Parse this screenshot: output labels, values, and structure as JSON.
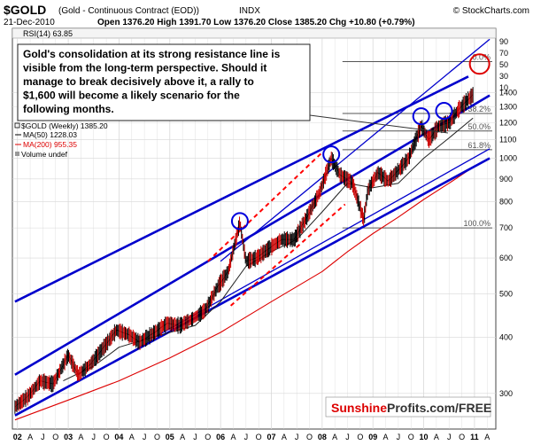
{
  "header": {
    "symbol": "$GOLD",
    "name": "(Gold - Continuous Contract (EOD))",
    "exchange": "INDX",
    "source": "© StockCharts.com",
    "date": "21-Dec-2010",
    "ohlc_line": "Open 1376.20  High 1391.70  Low 1376.20  Close 1385.20  Chg +10.80 (+0.79%)"
  },
  "rsi": {
    "label": "RSI(14) 63.85"
  },
  "annotation": {
    "lines": [
      "Gold's consolidation at its strong resistance line is",
      "visible from the long-term perspective. Should it",
      "manage to break decisively above it, a rally to",
      "$1,600 will become a likely scenario for the",
      "following months."
    ]
  },
  "legend": {
    "price": "$GOLD (Weekly) 1385.20",
    "ma50": "MA(50) 1228.03",
    "ma200": "MA(200) 955.35",
    "volume": "Volume undef"
  },
  "fib_labels": [
    "0.0%",
    "38.2%",
    "50.0%",
    "61.8%",
    "100.0%"
  ],
  "watermark": {
    "brand": "Sunshine",
    "rest": "Profits.com/FREE"
  },
  "colors": {
    "trendline": "#0000cc",
    "ma200": "#dd0000",
    "dashed": "#ff0000",
    "circle_blue": "#0000dd",
    "circle_red": "#dd0000",
    "candle_up": "#000000",
    "candle_down": "#cc0000",
    "grid": "#d8d8d8"
  },
  "chart_data": {
    "type": "line",
    "scale": "log",
    "ylim": [
      250,
      1850
    ],
    "y_ticks": [
      300,
      400,
      500,
      600,
      700,
      800,
      900,
      1000,
      1100,
      1200,
      1300,
      1400
    ],
    "rsi_ticks": [
      10,
      30,
      50,
      70,
      90
    ],
    "x_tick_labels": [
      "J",
      "02",
      "A",
      "J",
      "O",
      "03",
      "A",
      "J",
      "O",
      "04",
      "A",
      "J",
      "O",
      "05",
      "A",
      "J",
      "O",
      "06",
      "A",
      "J",
      "O",
      "07",
      "A",
      "J",
      "O",
      "08",
      "A",
      "J",
      "O",
      "09",
      "A",
      "J",
      "O",
      "10",
      "A",
      "J",
      "O",
      "11",
      "A",
      "J"
    ],
    "x_year_labels": [
      "02",
      "03",
      "04",
      "05",
      "06",
      "07",
      "08",
      "09",
      "10",
      "11"
    ],
    "fibonacci_levels": [
      {
        "label": "0.0%",
        "value": 1640
      },
      {
        "label": "38.2%",
        "value": 1258
      },
      {
        "label": "50.0%",
        "value": 1150
      },
      {
        "label": "61.8%",
        "value": 1045
      },
      {
        "label": "100.0%",
        "value": 700
      }
    ],
    "price_series": {
      "name": "$GOLD (Weekly)",
      "x": [
        2001.95,
        2002.2,
        2002.45,
        2002.7,
        2003.0,
        2003.2,
        2003.45,
        2003.7,
        2003.95,
        2004.2,
        2004.4,
        2004.7,
        2004.95,
        2005.2,
        2005.45,
        2005.7,
        2005.95,
        2006.15,
        2006.38,
        2006.5,
        2006.7,
        2006.95,
        2007.2,
        2007.45,
        2007.7,
        2007.95,
        2008.18,
        2008.35,
        2008.6,
        2008.82,
        2008.9,
        2009.1,
        2009.3,
        2009.5,
        2009.7,
        2009.95,
        2010.1,
        2010.3,
        2010.5,
        2010.7,
        2010.97
      ],
      "y": [
        280,
        295,
        320,
        315,
        365,
        330,
        350,
        380,
        415,
        405,
        390,
        410,
        430,
        425,
        440,
        460,
        520,
        560,
        720,
        590,
        600,
        630,
        660,
        660,
        740,
        840,
        1000,
        920,
        880,
        730,
        850,
        930,
        890,
        940,
        1000,
        1180,
        1100,
        1180,
        1200,
        1290,
        1385
      ]
    },
    "ma50": {
      "name": "MA(50)",
      "x": [
        2002.9,
        2003.5,
        2004.0,
        2004.5,
        2005.0,
        2005.5,
        2006.0,
        2006.5,
        2007.0,
        2007.5,
        2008.0,
        2008.5,
        2009.0,
        2009.5,
        2010.0,
        2010.5,
        2010.97
      ],
      "y": [
        320,
        345,
        380,
        395,
        410,
        425,
        480,
        575,
        620,
        660,
        760,
        880,
        860,
        880,
        1000,
        1110,
        1228
      ]
    },
    "ma200": {
      "name": "MA(200)",
      "x": [
        2001.95,
        2003.0,
        2004.0,
        2005.0,
        2006.0,
        2007.0,
        2008.0,
        2008.5,
        2009.0,
        2009.5,
        2010.0,
        2010.5,
        2010.97
      ],
      "y": [
        262,
        290,
        320,
        360,
        410,
        480,
        560,
        620,
        680,
        740,
        810,
        880,
        955
      ]
    },
    "trendlines": [
      {
        "role": "upper-channel",
        "x": [
          2001.95,
          2010.88
        ],
        "y": [
          480,
          1520
        ]
      },
      {
        "role": "inner-upper",
        "x": [
          2006.0,
          2011.3
        ],
        "y": [
          590,
          1840
        ]
      },
      {
        "role": "lower-support",
        "x": [
          2001.95,
          2011.3
        ],
        "y": [
          268,
          1000
        ]
      },
      {
        "role": "outer-lower",
        "x": [
          2001.95,
          2011.3
        ],
        "y": [
          330,
          1380
        ]
      },
      {
        "role": "inner-lower",
        "x": [
          2004.7,
          2011.3
        ],
        "y": [
          400,
          1050
        ]
      }
    ],
    "dashed_lines": [
      {
        "x": [
          2005.75,
          2008.0
        ],
        "y": [
          590,
          1030
        ]
      },
      {
        "x": [
          2006.2,
          2008.45
        ],
        "y": [
          470,
          790
        ]
      }
    ],
    "highlight_circles": [
      {
        "x": 2006.38,
        "y": 725,
        "color": "blue"
      },
      {
        "x": 2008.18,
        "y": 1020,
        "color": "blue"
      },
      {
        "x": 2009.95,
        "y": 1240,
        "color": "blue"
      },
      {
        "x": 2010.4,
        "y": 1275,
        "color": "blue"
      },
      {
        "x": 2011.1,
        "y": 1620,
        "color": "red"
      }
    ]
  }
}
